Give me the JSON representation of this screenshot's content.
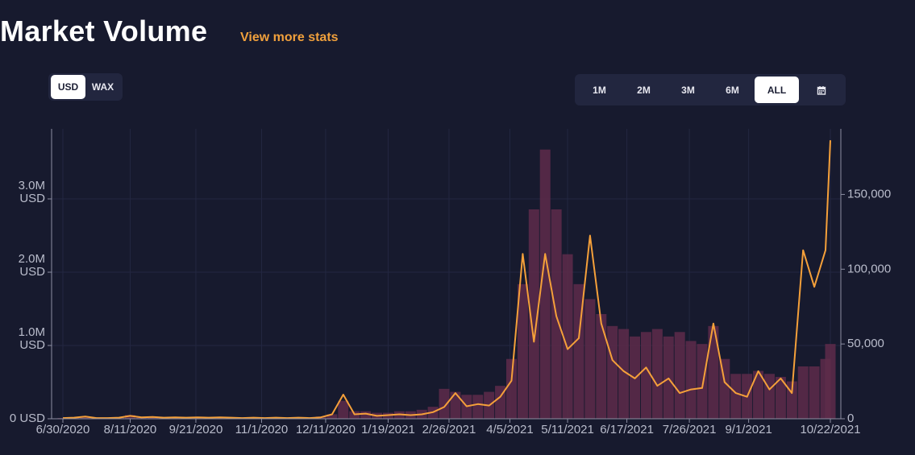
{
  "header": {
    "title": "Market Volume",
    "link": "View more stats"
  },
  "controls": {
    "currency": [
      "USD",
      "WAX"
    ],
    "currency_active": 0,
    "ranges": [
      "1M",
      "2M",
      "3M",
      "6M",
      "ALL"
    ],
    "range_active": 4
  },
  "chart_data": {
    "type": "combo",
    "x": [
      "6/30/2020",
      "7/7/2020",
      "7/14/2020",
      "7/21/2020",
      "7/28/2020",
      "8/4/2020",
      "8/11/2020",
      "8/18/2020",
      "8/25/2020",
      "9/1/2020",
      "9/8/2020",
      "9/15/2020",
      "9/22/2020",
      "9/29/2020",
      "10/6/2020",
      "10/13/2020",
      "10/20/2020",
      "10/27/2020",
      "11/3/2020",
      "11/10/2020",
      "11/17/2020",
      "11/24/2020",
      "12/1/2020",
      "12/8/2020",
      "12/15/2020",
      "12/22/2020",
      "12/29/2020",
      "1/5/2021",
      "1/12/2021",
      "1/19/2021",
      "1/26/2021",
      "2/2/2021",
      "2/9/2021",
      "2/16/2021",
      "2/23/2021",
      "3/2/2021",
      "3/9/2021",
      "3/16/2021",
      "3/23/2021",
      "3/30/2021",
      "4/6/2021",
      "4/13/2021",
      "4/20/2021",
      "4/27/2021",
      "5/4/2021",
      "5/11/2021",
      "5/18/2021",
      "5/25/2021",
      "6/1/2021",
      "6/8/2021",
      "6/15/2021",
      "6/22/2021",
      "6/29/2021",
      "7/6/2021",
      "7/13/2021",
      "7/20/2021",
      "7/27/2021",
      "8/3/2021",
      "8/10/2021",
      "8/17/2021",
      "8/24/2021",
      "8/31/2021",
      "9/7/2021",
      "9/14/2021",
      "9/21/2021",
      "9/28/2021",
      "10/5/2021",
      "10/12/2021",
      "10/19/2021",
      "10/22/2021"
    ],
    "series": [
      {
        "type": "bar",
        "axis": "y2",
        "color": "#5e2c4a",
        "values": [
          500,
          800,
          1500,
          600,
          500,
          700,
          2500,
          1200,
          1500,
          1000,
          1200,
          900,
          1200,
          900,
          1200,
          1000,
          800,
          900,
          700,
          900,
          700,
          900,
          800,
          1500,
          3000,
          12000,
          5000,
          5000,
          4000,
          4000,
          5000,
          5000,
          6000,
          8000,
          20000,
          18000,
          16000,
          16000,
          18000,
          22000,
          40000,
          90000,
          140000,
          180000,
          140000,
          110000,
          90000,
          80000,
          70000,
          62000,
          60000,
          55000,
          58000,
          60000,
          55000,
          58000,
          52000,
          50000,
          62000,
          40000,
          30000,
          30000,
          32000,
          30000,
          28000,
          25000,
          35000,
          35000,
          40000,
          50000
        ]
      },
      {
        "type": "line",
        "color": "#f5a03a",
        "values": [
          10000,
          15000,
          30000,
          10000,
          10000,
          15000,
          40000,
          20000,
          25000,
          15000,
          20000,
          15000,
          20000,
          15000,
          20000,
          15000,
          10000,
          15000,
          10000,
          15000,
          10000,
          15000,
          10000,
          20000,
          60000,
          330000,
          60000,
          70000,
          40000,
          50000,
          60000,
          50000,
          60000,
          90000,
          160000,
          350000,
          170000,
          200000,
          180000,
          300000,
          520000,
          2250000,
          1050000,
          2250000,
          1400000,
          950000,
          1100000,
          2500000,
          1300000,
          800000,
          650000,
          550000,
          700000,
          450000,
          550000,
          350000,
          400000,
          420000,
          1300000,
          500000,
          350000,
          300000,
          650000,
          400000,
          550000,
          350000,
          2300000,
          1800000,
          2300000,
          3800000
        ]
      }
    ],
    "ylim": [
      0,
      4000000
    ],
    "yticks": [
      {
        "value": 0,
        "label": "0 USD"
      },
      {
        "value": 1000000,
        "label": "1.0M USD"
      },
      {
        "value": 2000000,
        "label": "2.0M USD"
      },
      {
        "value": 3000000,
        "label": "3.0M USD"
      }
    ],
    "y2lim": [
      0,
      196000
    ],
    "y2ticks": [
      0,
      {
        "value": 50000,
        "label": "50,000"
      },
      {
        "value": 100000,
        "label": "100,000"
      },
      {
        "value": 150000,
        "label": "150,000"
      }
    ],
    "xticks": [
      "6/30/2020",
      "8/11/2020",
      "9/21/2020",
      "11/1/2020",
      "12/11/2020",
      "1/19/2021",
      "2/26/2021",
      "4/5/2021",
      "5/11/2021",
      "6/17/2021",
      "7/26/2021",
      "9/1/2021",
      "10/22/2021"
    ],
    "grid": true
  }
}
